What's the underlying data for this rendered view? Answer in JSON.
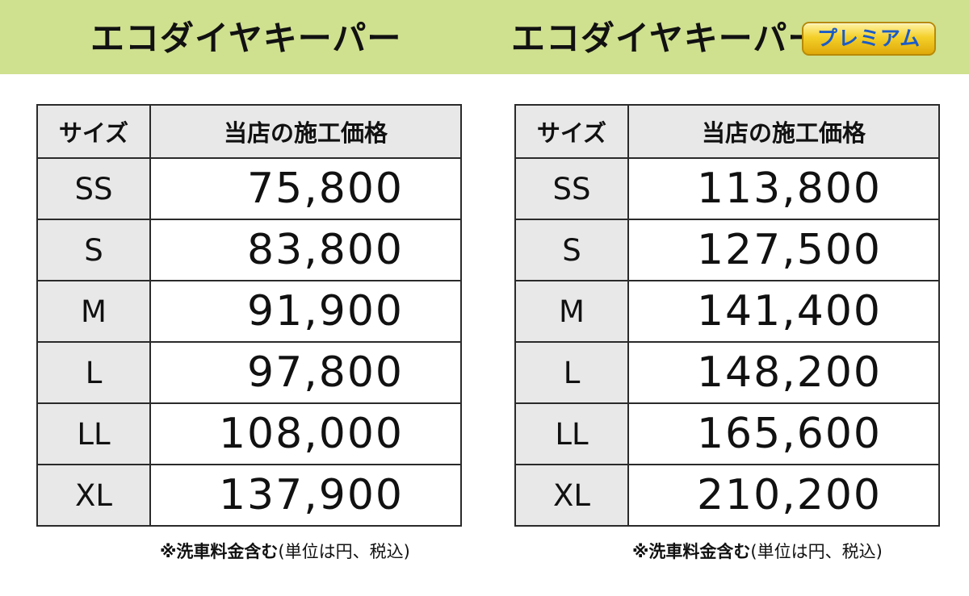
{
  "header": {
    "left_title": "エコダイヤキーパー",
    "right_title": "エコダイヤキーパー",
    "right_badge": "プレミアム",
    "background": "#cfe08f",
    "badge_color": "#f4d02a"
  },
  "tables": {
    "left": {
      "col_size": "サイズ",
      "col_price": "当店の施工価格",
      "rows": [
        {
          "size": "SS",
          "price": "75,800"
        },
        {
          "size": "S",
          "price": "83,800"
        },
        {
          "size": "M",
          "price": "91,900"
        },
        {
          "size": "L",
          "price": "97,800"
        },
        {
          "size": "LL",
          "price": "108,000"
        },
        {
          "size": "XL",
          "price": "137,900"
        }
      ],
      "note_bold": "※洗車料金含む",
      "note_rest": "(単位は円、税込)"
    },
    "right": {
      "col_size": "サイズ",
      "col_price": "当店の施工価格",
      "rows": [
        {
          "size": "SS",
          "price": "113,800"
        },
        {
          "size": "S",
          "price": "127,500"
        },
        {
          "size": "M",
          "price": "141,400"
        },
        {
          "size": "L",
          "price": "148,200"
        },
        {
          "size": "LL",
          "price": "165,600"
        },
        {
          "size": "XL",
          "price": "210,200"
        }
      ],
      "note_bold": "※洗車料金含む",
      "note_rest": "(単位は円、税込)"
    }
  }
}
